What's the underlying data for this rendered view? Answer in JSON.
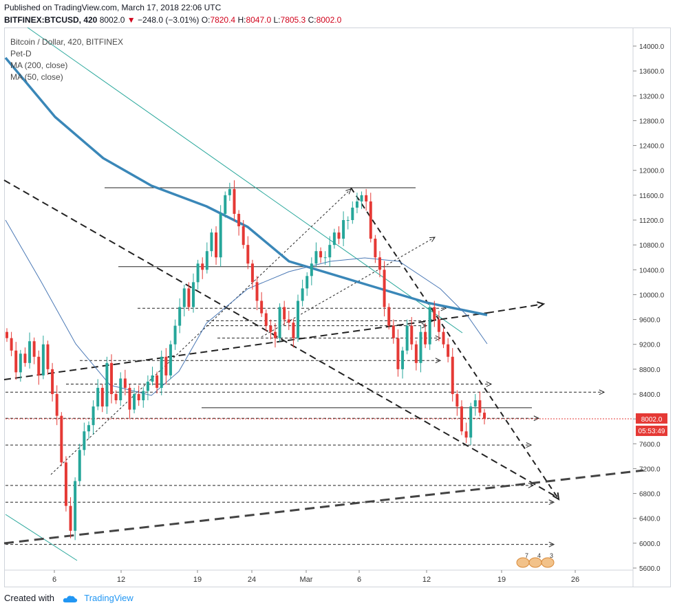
{
  "header": {
    "published": "Published on TradingView.com, March 17, 2018 22:06 UTC",
    "symbol": "BITFINEX:BTCUSD, 420",
    "last": "8002.0",
    "change_arrow": "▼",
    "change": "−248.0 (−3.01%)",
    "o_label": "O:",
    "o": "7820.4",
    "h_label": "H:",
    "h": "8047.0",
    "l_label": "L:",
    "l": "7805.3",
    "c_label": "C:",
    "c": "8002.0"
  },
  "legend": {
    "title": "Bitcoin / Dollar, 420, BITFINEX",
    "line2": "Pet-D",
    "line3": "MA (200, close)",
    "line4": "MA (50, close)"
  },
  "footer": {
    "created_with": "Created with",
    "brand": "TradingView"
  },
  "colors": {
    "up": "#26a69a",
    "down": "#e53935",
    "ma200": "#3a87b8",
    "ma50": "#4a78b5",
    "trend": "#26a69a",
    "price_tag": "#e53935"
  },
  "chart_data": {
    "type": "candlestick",
    "x_ticks": [
      "6",
      "12",
      "19",
      "24",
      "Mar",
      "6",
      "12",
      "19",
      "26"
    ],
    "y_ticks": [
      "14000.0",
      "13600.0",
      "13200.0",
      "12800.0",
      "12400.0",
      "12000.0",
      "11600.0",
      "11200.0",
      "10800.0",
      "10400.0",
      "10000.0",
      "9600.0",
      "9200.0",
      "8800.0",
      "8400.0",
      "8000.0",
      "7600.0",
      "7200.0",
      "6800.0",
      "6400.0",
      "6000.0",
      "5600.0"
    ],
    "ylim": [
      5600,
      14000
    ],
    "price_label": "8002.0",
    "countdown_label": "05:53:49",
    "event_numbers": [
      "7",
      "4",
      "3"
    ],
    "closes": [
      9300,
      9100,
      8750,
      9050,
      8900,
      9250,
      9000,
      8700,
      9200,
      8800,
      8400,
      8050,
      7300,
      6600,
      6200,
      7000,
      7500,
      7800,
      7900,
      8200,
      8500,
      8200,
      8900,
      8400,
      8300,
      8650,
      8500,
      8150,
      8400,
      8300,
      8450,
      8600,
      8700,
      8500,
      9000,
      8700,
      9200,
      9500,
      9800,
      10100,
      9800,
      10200,
      10500,
      10400,
      10700,
      11000,
      10600,
      11300,
      11600,
      11700,
      11300,
      11100,
      10800,
      10500,
      10200,
      9900,
      9700,
      9500,
      9400,
      9300,
      9800,
      9600,
      9550,
      9300,
      9900,
      10100,
      10300,
      10500,
      10700,
      10600,
      10600,
      10800,
      11000,
      10900,
      11200,
      11200,
      11400,
      11500,
      11600,
      11500,
      10900,
      10600,
      10400,
      9800,
      9500,
      9300,
      8800,
      9100,
      9500,
      9200,
      8900,
      9400,
      9200,
      9800,
      9600,
      9400,
      9200,
      9000,
      8400,
      8200,
      7800,
      7700,
      8200,
      8300,
      8100,
      8002
    ]
  }
}
